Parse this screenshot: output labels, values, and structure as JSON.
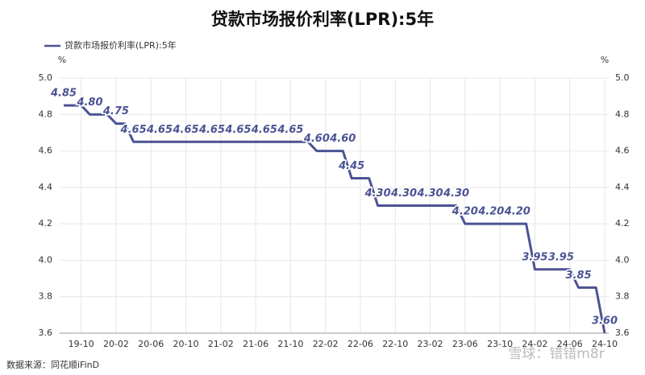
{
  "chart_data": {
    "type": "line",
    "title": "贷款市场报价利率(LPR):5年",
    "y_unit": "%",
    "y2_unit": "%",
    "source": "数据来源：同花顺iFinD",
    "watermark": "雪球：错错m8r",
    "categories": [
      null,
      null,
      "19-10",
      null,
      null,
      null,
      "20-02",
      null,
      null,
      null,
      "20-06",
      null,
      null,
      null,
      "20-10",
      null,
      null,
      null,
      "21-02",
      null,
      null,
      null,
      "21-06",
      null,
      null,
      null,
      "21-10",
      null,
      null,
      null,
      "22-02",
      null,
      null,
      null,
      "22-06",
      null,
      null,
      null,
      "22-10",
      null,
      null,
      null,
      "23-02",
      null,
      null,
      null,
      "23-06",
      null,
      null,
      null,
      "23-10",
      null,
      null,
      null,
      "24-02",
      null,
      null,
      null,
      "24-06",
      null,
      null,
      null,
      "24-10"
    ],
    "series": [
      {
        "name": "贷款市场报价利率(LPR):5年",
        "color": "#4b5393",
        "values": [
          4.85,
          4.85,
          4.85,
          4.8,
          4.8,
          4.8,
          4.75,
          4.75,
          4.65,
          4.65,
          4.65,
          4.65,
          4.65,
          4.65,
          4.65,
          4.65,
          4.65,
          4.65,
          4.65,
          4.65,
          4.65,
          4.65,
          4.65,
          4.65,
          4.65,
          4.65,
          4.65,
          4.65,
          4.65,
          4.6,
          4.6,
          4.6,
          4.6,
          4.45,
          4.45,
          4.45,
          4.3,
          4.3,
          4.3,
          4.3,
          4.3,
          4.3,
          4.3,
          4.3,
          4.3,
          4.3,
          4.2,
          4.2,
          4.2,
          4.2,
          4.2,
          4.2,
          4.2,
          4.2,
          3.95,
          3.95,
          3.95,
          3.95,
          3.95,
          3.85,
          3.85,
          3.85,
          3.6
        ],
        "value_labels": [
          "4.85",
          null,
          null,
          "4.80",
          null,
          null,
          "4.75",
          null,
          "4.65",
          null,
          null,
          "4.65",
          null,
          null,
          "4.65",
          null,
          null,
          "4.65",
          null,
          null,
          "4.65",
          null,
          null,
          "4.65",
          null,
          null,
          "4.65",
          null,
          null,
          "4.60",
          null,
          null,
          "4.60",
          "4.45",
          null,
          null,
          "4.30",
          null,
          null,
          "4.30",
          null,
          null,
          "4.30",
          null,
          null,
          "4.30",
          "4.20",
          null,
          null,
          "4.20",
          null,
          null,
          "4.20",
          null,
          "3.95",
          null,
          null,
          "3.95",
          null,
          "3.85",
          null,
          null,
          "3.60"
        ]
      }
    ],
    "ylim": [
      3.6,
      5.0
    ],
    "yticks": [
      3.6,
      3.8,
      {
        "value": 4.0,
        "label": "4.0"
      },
      4.2,
      4.4,
      4.6,
      4.8,
      {
        "value": 5.0,
        "label": "5.0"
      }
    ],
    "y2lim": [
      3.6,
      5.0
    ],
    "y2ticks": [
      3.6,
      3.8,
      {
        "value": 4.0,
        "label": "4.0"
      },
      4.2,
      4.4,
      4.6,
      4.8,
      {
        "value": 5.0,
        "label": "5.0"
      }
    ],
    "grid": true,
    "legend": "top-left"
  }
}
